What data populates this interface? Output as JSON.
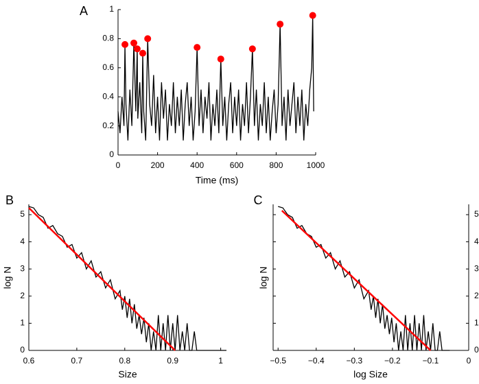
{
  "chart_data": [
    {
      "type": "line",
      "label": "A",
      "xlabel": "Time (ms)",
      "x": [
        0,
        10,
        20,
        30,
        35,
        40,
        50,
        60,
        70,
        80,
        90,
        97,
        100,
        110,
        120,
        125,
        130,
        140,
        150,
        160,
        170,
        180,
        190,
        200,
        210,
        220,
        230,
        240,
        250,
        260,
        270,
        280,
        290,
        300,
        310,
        320,
        330,
        340,
        350,
        360,
        370,
        380,
        390,
        400,
        410,
        420,
        430,
        440,
        450,
        460,
        470,
        480,
        490,
        500,
        510,
        520,
        530,
        540,
        550,
        560,
        570,
        580,
        590,
        600,
        610,
        620,
        630,
        640,
        650,
        660,
        670,
        680,
        690,
        700,
        710,
        720,
        730,
        740,
        750,
        760,
        770,
        780,
        790,
        800,
        810,
        820,
        830,
        840,
        850,
        860,
        870,
        880,
        890,
        900,
        910,
        920,
        930,
        940,
        950,
        960,
        970,
        980,
        985,
        990
      ],
      "values": [
        0.3,
        0.15,
        0.4,
        0.2,
        0.76,
        0.35,
        0.1,
        0.45,
        0.2,
        0.77,
        0.3,
        0.73,
        0.25,
        0.5,
        0.15,
        0.7,
        0.3,
        0.1,
        0.8,
        0.35,
        0.2,
        0.55,
        0.15,
        0.4,
        0.1,
        0.5,
        0.25,
        0.45,
        0.1,
        0.35,
        0.2,
        0.5,
        0.15,
        0.4,
        0.2,
        0.45,
        0.1,
        0.35,
        0.5,
        0.2,
        0.4,
        0.1,
        0.3,
        0.74,
        0.2,
        0.45,
        0.15,
        0.4,
        0.25,
        0.5,
        0.1,
        0.35,
        0.2,
        0.45,
        0.15,
        0.66,
        0.2,
        0.4,
        0.1,
        0.35,
        0.5,
        0.15,
        0.4,
        0.2,
        0.45,
        0.1,
        0.35,
        0.2,
        0.5,
        0.15,
        0.4,
        0.73,
        0.2,
        0.45,
        0.1,
        0.35,
        0.2,
        0.5,
        0.15,
        0.4,
        0.1,
        0.3,
        0.45,
        0.15,
        0.35,
        0.9,
        0.2,
        0.4,
        0.1,
        0.45,
        0.2,
        0.35,
        0.5,
        0.15,
        0.4,
        0.2,
        0.45,
        0.1,
        0.35,
        0.2,
        0.45,
        0.6,
        0.96,
        0.3
      ],
      "color": "#000000",
      "markers": {
        "x": [
          35,
          80,
          97,
          125,
          150,
          400,
          520,
          680,
          820,
          985
        ],
        "values": [
          0.76,
          0.77,
          0.73,
          0.7,
          0.8,
          0.74,
          0.66,
          0.73,
          0.9,
          0.96
        ],
        "color": "#ff0000"
      },
      "xlim": [
        0,
        1000
      ],
      "xticks": [
        0,
        200,
        400,
        600,
        800,
        1000
      ],
      "ylim": [
        0,
        1
      ],
      "yticks": [
        0,
        0.2,
        0.4,
        0.6,
        0.8,
        1
      ],
      "axes": [
        "left",
        "bottom"
      ],
      "ytick_side": "left"
    },
    {
      "type": "line",
      "label": "B",
      "xlabel": "Size",
      "ylabel": "log N",
      "x": [
        0.6,
        0.61,
        0.62,
        0.63,
        0.64,
        0.65,
        0.66,
        0.67,
        0.68,
        0.69,
        0.7,
        0.71,
        0.72,
        0.73,
        0.74,
        0.75,
        0.76,
        0.77,
        0.78,
        0.79,
        0.795,
        0.8,
        0.805,
        0.81,
        0.815,
        0.82,
        0.825,
        0.83,
        0.835,
        0.84,
        0.845,
        0.85,
        0.855,
        0.86,
        0.865,
        0.87,
        0.875,
        0.88,
        0.885,
        0.89,
        0.895,
        0.9,
        0.905,
        0.91,
        0.915,
        0.92,
        0.925,
        0.93,
        0.935,
        0.94,
        0.945,
        0.95,
        1.012
      ],
      "values": [
        5.3,
        5.25,
        5.0,
        4.9,
        4.5,
        4.6,
        4.3,
        4.2,
        3.8,
        3.9,
        3.4,
        3.6,
        3.0,
        3.3,
        2.7,
        2.9,
        2.3,
        2.6,
        1.9,
        2.2,
        1.5,
        2.0,
        1.2,
        1.9,
        1.0,
        1.7,
        0.8,
        1.3,
        0.6,
        1.2,
        0.3,
        1.0,
        0,
        0.7,
        0,
        1.3,
        0,
        1.0,
        0,
        1.3,
        0,
        1.0,
        0,
        1.3,
        0,
        0.7,
        0,
        1.0,
        0,
        0,
        0.7,
        0,
        0
      ],
      "color": "#000000",
      "fit": {
        "x": [
          0.6,
          0.905
        ],
        "values": [
          5.25,
          0
        ],
        "color": "#ff0000"
      },
      "xlim": [
        0.6,
        1.012
      ],
      "xticks": [
        0.6,
        0.7,
        0.8,
        0.9,
        1
      ],
      "ylim": [
        0,
        5.38
      ],
      "yticks": [
        0,
        1,
        2,
        3,
        4,
        5
      ],
      "axes": [
        "left",
        "bottom"
      ],
      "ytick_side": "left"
    },
    {
      "type": "line",
      "label": "C",
      "xlabel": "log Size",
      "ylabel": "log N",
      "x": [
        -0.5,
        -0.4875,
        -0.475,
        -0.4625,
        -0.45,
        -0.4375,
        -0.425,
        -0.4125,
        -0.4,
        -0.3875,
        -0.375,
        -0.3625,
        -0.35,
        -0.3375,
        -0.325,
        -0.3125,
        -0.3,
        -0.2875,
        -0.275,
        -0.2625,
        -0.256,
        -0.25,
        -0.244,
        -0.238,
        -0.232,
        -0.226,
        -0.22,
        -0.214,
        -0.208,
        -0.202,
        -0.196,
        -0.19,
        -0.184,
        -0.178,
        -0.172,
        -0.166,
        -0.16,
        -0.154,
        -0.148,
        -0.142,
        -0.136,
        -0.13,
        -0.124,
        -0.118,
        -0.112,
        -0.106,
        -0.1,
        -0.094,
        -0.088,
        -0.082,
        -0.076,
        -0.07,
        -0.05
      ],
      "values": [
        5.3,
        5.25,
        5.0,
        4.9,
        4.5,
        4.6,
        4.3,
        4.2,
        3.8,
        3.9,
        3.4,
        3.6,
        3.0,
        3.3,
        2.7,
        2.9,
        2.3,
        2.6,
        1.9,
        2.2,
        1.5,
        2.0,
        1.2,
        1.9,
        1.0,
        1.7,
        0.8,
        1.3,
        0.6,
        1.2,
        0.3,
        1.0,
        0,
        0.7,
        0,
        1.3,
        0,
        1.0,
        0,
        1.3,
        0,
        1.0,
        0,
        1.3,
        0,
        0.7,
        0,
        1.0,
        0,
        0,
        0.7,
        0,
        0
      ],
      "color": "#000000",
      "fit": {
        "x": [
          -0.49,
          -0.1
        ],
        "values": [
          5.15,
          0
        ],
        "color": "#ff0000"
      },
      "xlim": [
        -0.513,
        0
      ],
      "xticks": [
        {
          "value": -0.5,
          "label": "−0.5"
        },
        {
          "value": -0.4,
          "label": "−0.4"
        },
        {
          "value": -0.3,
          "label": "−0.3"
        },
        {
          "value": -0.2,
          "label": "−0.2"
        },
        {
          "value": -0.1,
          "label": "−0.1"
        },
        0
      ],
      "ylim": [
        0,
        5.38
      ],
      "yticks": [
        0,
        1,
        2,
        3,
        4,
        5
      ],
      "axes": [
        "left",
        "bottom",
        "right"
      ],
      "ytick_side": "right"
    }
  ]
}
